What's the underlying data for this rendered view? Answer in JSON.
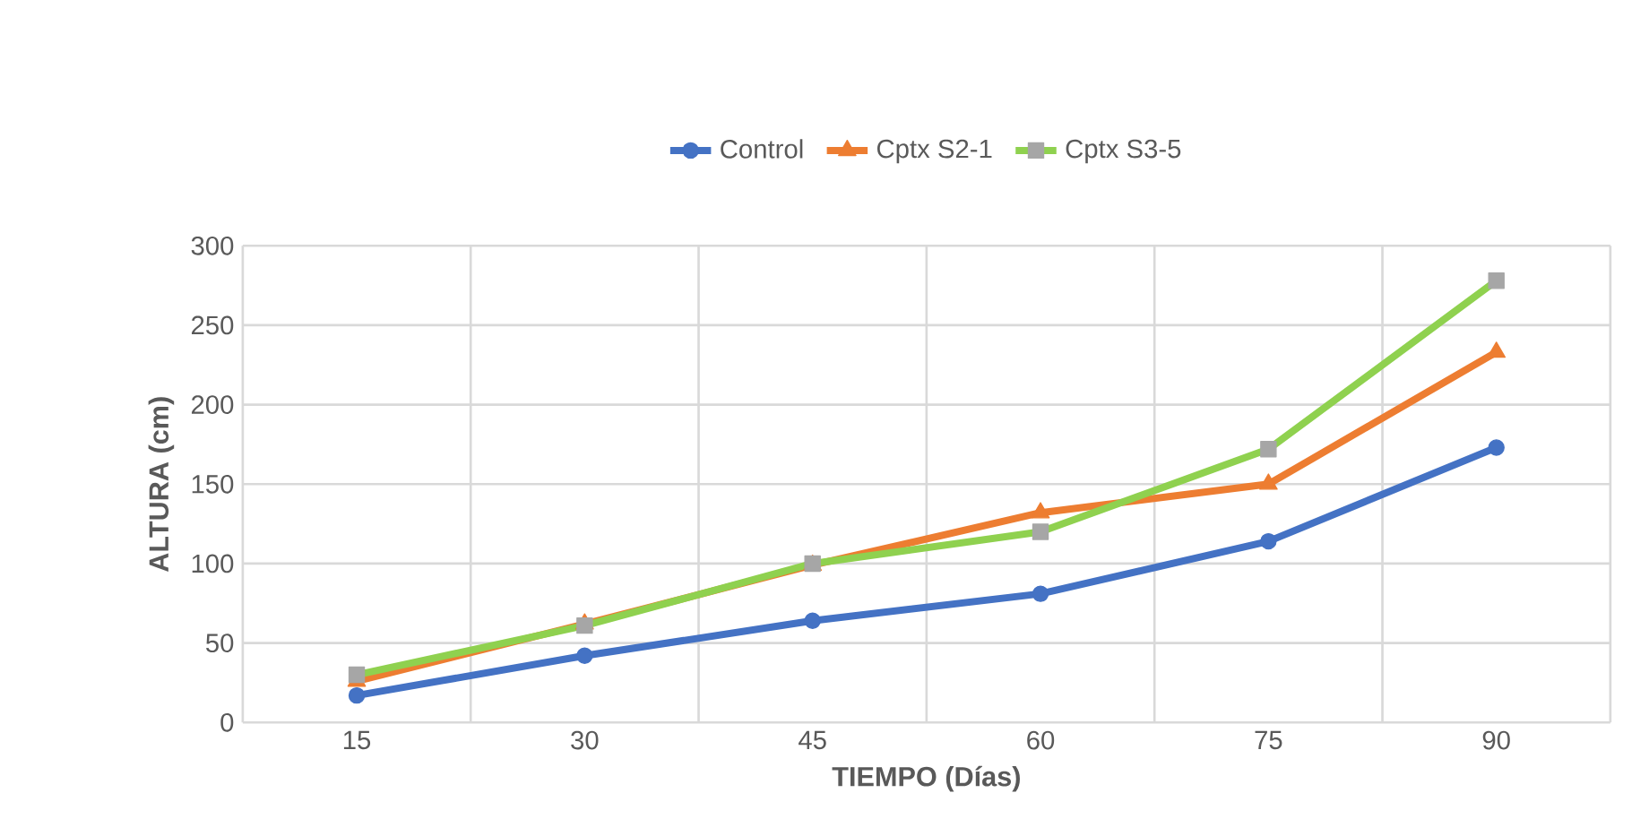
{
  "chart_data": {
    "type": "line",
    "xlabel": "TIEMPO (Días)",
    "ylabel": "ALTURA (cm)",
    "categories": [
      "15",
      "30",
      "45",
      "60",
      "75",
      "90"
    ],
    "series": [
      {
        "name": "Control",
        "color": "#4472c4",
        "marker": "circle",
        "values": [
          17,
          42,
          64,
          81,
          114,
          173
        ]
      },
      {
        "name": "Cptx S2-1",
        "color": "#ed7d31",
        "marker": "triangle",
        "values": [
          26,
          62,
          99,
          132,
          150,
          233
        ]
      },
      {
        "name": "Cptx S3-5",
        "color": "#8fd14f",
        "marker": "square",
        "values": [
          30,
          61,
          100,
          120,
          172,
          278
        ]
      }
    ],
    "ylim": [
      0,
      300
    ],
    "yticks": [
      0,
      50,
      100,
      150,
      200,
      250,
      300
    ],
    "grid": true,
    "legend": "top",
    "line_style": "solid"
  }
}
